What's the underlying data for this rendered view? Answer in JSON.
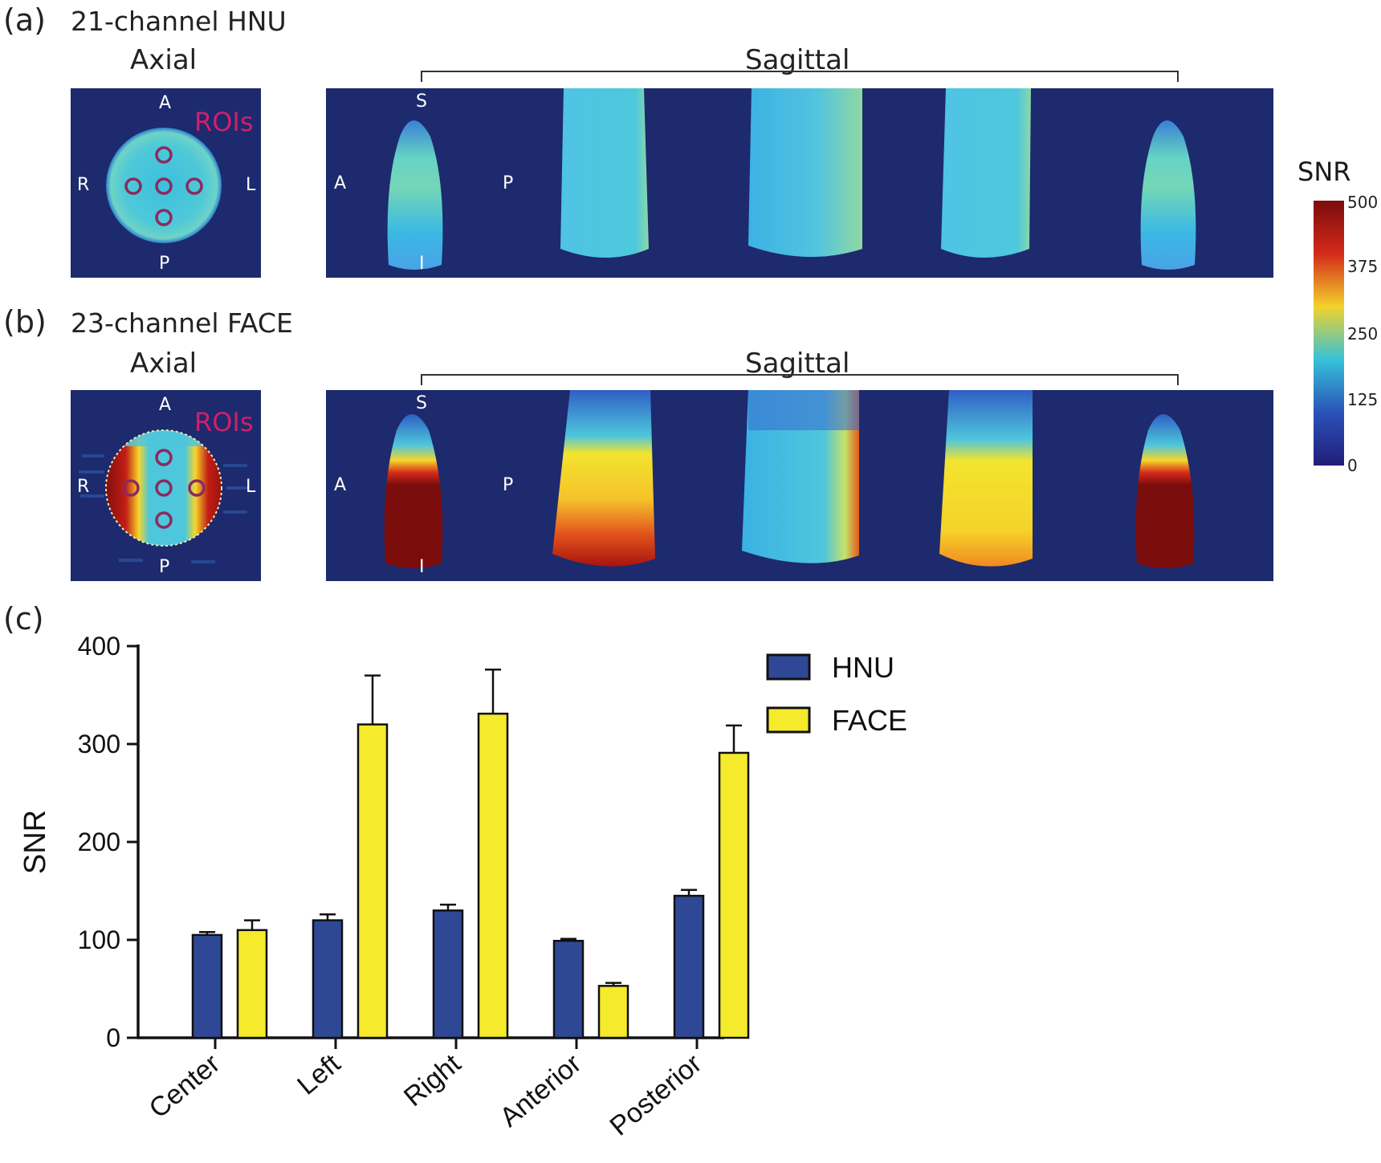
{
  "panels": {
    "a": {
      "letter": "(a)",
      "coil": "21-channel HNU",
      "axial": "Axial",
      "sagittal": "Sagittal"
    },
    "b": {
      "letter": "(b)",
      "coil": "23-channel FACE",
      "axial": "Axial",
      "sagittal": "Sagittal"
    },
    "c": {
      "letter": "(c)"
    }
  },
  "orientation": {
    "anterior": "A",
    "posterior": "P",
    "right": "R",
    "left": "L",
    "superior": "S",
    "inferior": "I"
  },
  "roi_label": "ROIs",
  "colorbar": {
    "title": "SNR",
    "ticks": [
      "500",
      "375",
      "250",
      "125",
      "0"
    ],
    "colors": [
      "#7a0c0c",
      "#d42a1a",
      "#f2d22a",
      "#36c2d8",
      "#2a52b8",
      "#221c78"
    ]
  },
  "chart_data": {
    "type": "bar",
    "categories": [
      "Center",
      "Left",
      "Right",
      "Anterior",
      "Posterior"
    ],
    "series": [
      {
        "name": "HNU",
        "color": "#2f4896",
        "values": [
          105,
          120,
          130,
          99,
          145
        ],
        "errors": [
          3,
          6,
          6,
          2,
          6
        ]
      },
      {
        "name": "FACE",
        "color": "#f5ea2c",
        "values": [
          110,
          320,
          331,
          53,
          291
        ],
        "errors": [
          10,
          50,
          45,
          3,
          28
        ]
      }
    ],
    "ylabel": "SNR",
    "xlabel": "",
    "ylim": [
      0,
      400
    ],
    "yticks": [
      0,
      100,
      200,
      300,
      400
    ],
    "legend": "top-right"
  }
}
